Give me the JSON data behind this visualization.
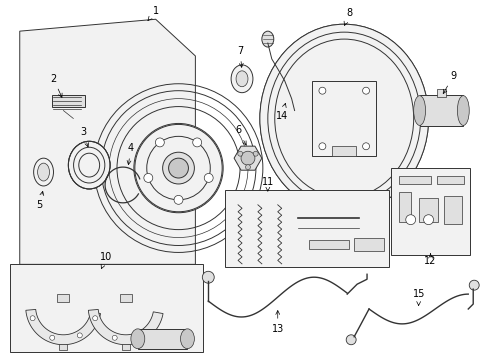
{
  "bg_color": "#ffffff",
  "line_color": "#333333",
  "fill_light": "#f2f2f2",
  "fill_mid": "#e0e0e0",
  "fill_dark": "#c8c8c8",
  "figsize": [
    4.89,
    3.6
  ],
  "dpi": 100,
  "fs": 7.0
}
